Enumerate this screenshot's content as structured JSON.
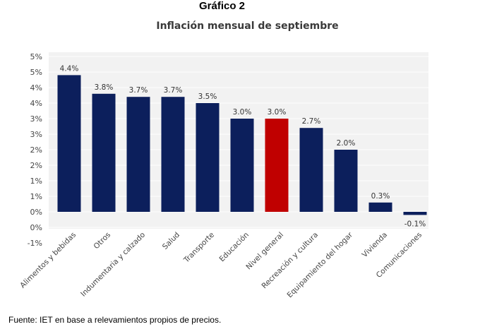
{
  "caption": "Gráfico 2",
  "source": "Fuente: IET en base a relevamientos propios de precios.",
  "chart_data": {
    "type": "bar",
    "title": "Inflación mensual de septiembre",
    "xlabel": "",
    "ylabel": "",
    "categories": [
      "Alimentos y bebidas",
      "Otros",
      "Indumentaria y calzado",
      "Salud",
      "Transporte",
      "Educación",
      "Nivel general",
      "Recreación y cultura",
      "Equipamiento del hogar",
      "Vivienda",
      "Comunicaciones"
    ],
    "values": [
      4.4,
      3.8,
      3.7,
      3.7,
      3.5,
      3.0,
      3.0,
      2.7,
      2.0,
      0.3,
      -0.1
    ],
    "value_labels": [
      "4.4%",
      "3.8%",
      "3.7%",
      "3.7%",
      "3.5%",
      "3.0%",
      "3.0%",
      "2.7%",
      "2.0%",
      "0.3%",
      "-0.1%"
    ],
    "ylim": [
      -1,
      5
    ],
    "ytick_values": [
      -1,
      -0.5,
      0,
      0.5,
      1,
      1.5,
      2,
      2.5,
      3,
      3.5,
      4,
      4.5,
      5
    ],
    "ytick_labels": [
      "-1%",
      "0%",
      "0%",
      "1%",
      "1%",
      "2%",
      "2%",
      "3%",
      "3%",
      "4%",
      "4%",
      "5%",
      "5%"
    ],
    "grid": true,
    "colors": {
      "bar": "#0c1f5c",
      "highlight": "#c00000",
      "plot_bg": "#f2f2f2",
      "grid": "#ffffff"
    },
    "highlight_category": "Nivel general"
  }
}
